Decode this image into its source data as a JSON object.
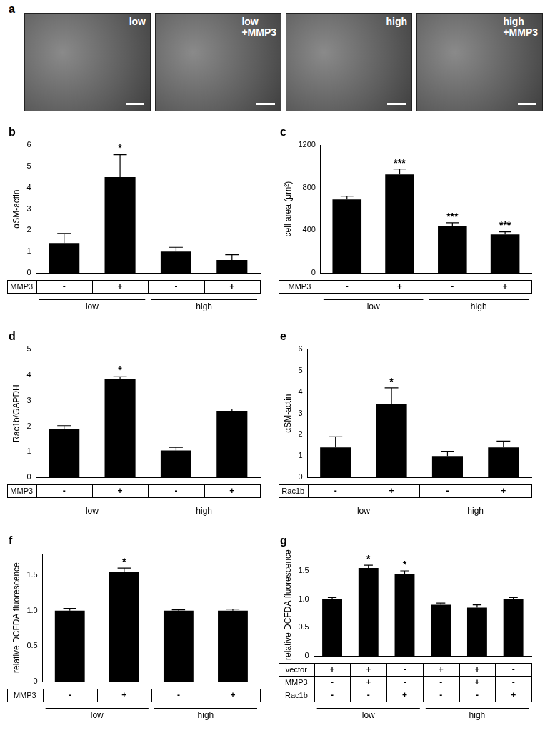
{
  "micrographs": {
    "title": "a",
    "images": [
      {
        "label": [
          "low"
        ]
      },
      {
        "label": [
          "low",
          "+MMP3"
        ]
      },
      {
        "label": [
          "high"
        ]
      },
      {
        "label": [
          "high",
          "+MMP3"
        ]
      }
    ]
  },
  "chart_data": [
    {
      "type": "bar",
      "title": "b",
      "y_label": "αSM-actin",
      "color": "#000000",
      "grid": false,
      "values": [
        1.4,
        4.5,
        1.0,
        0.6
      ],
      "errors": [
        0.45,
        1.05,
        0.2,
        0.25
      ],
      "annotations": [
        null,
        "*",
        null,
        null
      ],
      "ylim": [
        0,
        6
      ],
      "yticks": [
        0,
        1,
        2,
        3,
        4,
        5,
        6
      ],
      "x_table": {
        "rows": [
          {
            "label": "MMP3",
            "values": [
              "-",
              "+",
              "-",
              "+"
            ]
          }
        ],
        "groups": [
          "low",
          "low",
          "high",
          "high"
        ]
      }
    },
    {
      "type": "bar",
      "title": "c",
      "y_label": "cell area (μm²)",
      "color": "#000000",
      "grid": false,
      "values": [
        690,
        925,
        440,
        360
      ],
      "errors": [
        30,
        50,
        30,
        25
      ],
      "annotations": [
        null,
        "***",
        "***",
        "***"
      ],
      "ylim": [
        0,
        1200
      ],
      "yticks": [
        0,
        400,
        800,
        1200
      ],
      "x_table": {
        "rows": [
          {
            "label": "MMP3",
            "values": [
              "-",
              "+",
              "-",
              "+"
            ]
          }
        ],
        "groups": [
          "low",
          "low",
          "high",
          "high"
        ]
      }
    },
    {
      "type": "bar",
      "title": "d",
      "y_label": "Rac1b/GAPDH",
      "color": "#000000",
      "grid": false,
      "values": [
        1.9,
        3.85,
        1.05,
        2.6
      ],
      "errors": [
        0.12,
        0.08,
        0.12,
        0.07
      ],
      "annotations": [
        null,
        "*",
        null,
        null
      ],
      "ylim": [
        0,
        5
      ],
      "yticks": [
        0,
        1,
        2,
        3,
        4,
        5
      ],
      "x_table": {
        "rows": [
          {
            "label": "MMP3",
            "values": [
              "-",
              "+",
              "-",
              "+"
            ]
          }
        ],
        "groups": [
          "low",
          "low",
          "high",
          "high"
        ]
      }
    },
    {
      "type": "bar",
      "title": "e",
      "y_label": "αSM-actin",
      "color": "#000000",
      "grid": false,
      "values": [
        1.4,
        3.45,
        1.0,
        1.4
      ],
      "errors": [
        0.5,
        0.75,
        0.22,
        0.3
      ],
      "annotations": [
        null,
        "*",
        null,
        null
      ],
      "ylim": [
        0,
        6
      ],
      "yticks": [
        0,
        1,
        2,
        3,
        4,
        5,
        6
      ],
      "x_table": {
        "rows": [
          {
            "label": "Rac1b",
            "values": [
              "-",
              "+",
              "-",
              "+"
            ]
          }
        ],
        "groups": [
          "low",
          "low",
          "high",
          "high"
        ]
      }
    },
    {
      "type": "bar",
      "title": "f",
      "y_label": "relative DCFDA fluorescence",
      "color": "#000000",
      "grid": false,
      "values": [
        1.0,
        1.55,
        1.0,
        1.0
      ],
      "errors": [
        0.03,
        0.05,
        0.01,
        0.02
      ],
      "annotations": [
        null,
        "*",
        null,
        null
      ],
      "ylim": [
        0,
        1.8
      ],
      "yticks": [
        0,
        0.5,
        {
          "value": 1,
          "label": "1.0"
        },
        1.5
      ],
      "x_table": {
        "rows": [
          {
            "label": "MMP3",
            "values": [
              "-",
              "+",
              "-",
              "+"
            ]
          }
        ],
        "groups": [
          "low",
          "low",
          "high",
          "high"
        ]
      }
    },
    {
      "type": "bar",
      "title": "g",
      "y_label": "relative DCFDA fluorescence",
      "color": "#000000",
      "grid": false,
      "values": [
        1.0,
        1.55,
        1.45,
        0.9,
        0.85,
        1.0
      ],
      "errors": [
        0.03,
        0.05,
        0.05,
        0.03,
        0.05,
        0.03
      ],
      "annotations": [
        null,
        "*",
        "*",
        null,
        null,
        null
      ],
      "ylim": [
        0,
        1.8
      ],
      "yticks": [
        0,
        0.5,
        {
          "value": 1,
          "label": "1.0"
        },
        1.5
      ],
      "x_table": {
        "rows": [
          {
            "label": "vector",
            "values": [
              "+",
              "+",
              "-",
              "+",
              "+",
              "-"
            ]
          },
          {
            "label": "MMP3",
            "values": [
              "-",
              "+",
              "-",
              "-",
              "+",
              "-"
            ]
          },
          {
            "label": "Rac1b",
            "values": [
              "-",
              "-",
              "+",
              "-",
              "-",
              "+"
            ]
          }
        ],
        "groups": [
          "low",
          "low",
          "low",
          "high",
          "high",
          "high"
        ]
      }
    }
  ]
}
